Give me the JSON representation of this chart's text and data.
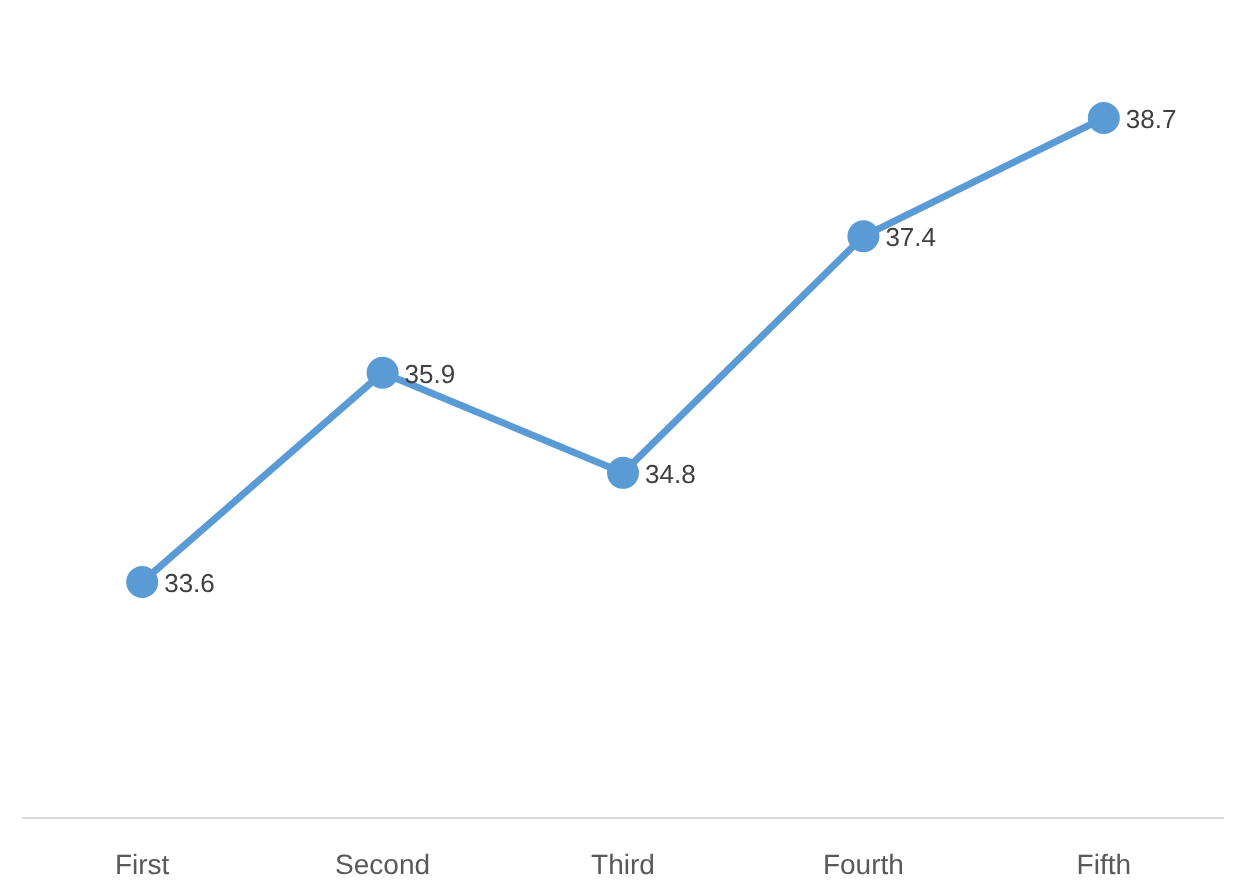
{
  "chart_data": {
    "type": "line",
    "categories": [
      "First",
      "Second",
      "Third",
      "Fourth",
      "Fifth"
    ],
    "series": [
      {
        "color": "#5b9bd5",
        "values": [
          33.6,
          35.9,
          34.8,
          37.4,
          38.7
        ]
      }
    ],
    "data_labels": true,
    "marker": "circle",
    "line_style": "solid",
    "tick_labels": "x"
  }
}
